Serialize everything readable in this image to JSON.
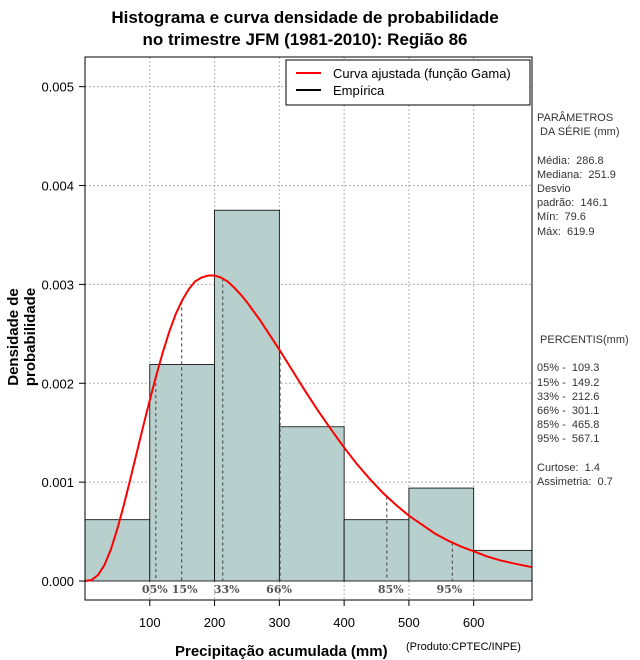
{
  "title_line1": "Histograma e curva densidade de probabilidade",
  "title_line2": "no trimestre JFM (1981-2010): Região 86",
  "colors": {
    "bar_fill": "#b7cfcd",
    "curve": "#ff0000",
    "grid": "#b0b0b0",
    "percentile_line": "#555555"
  },
  "chart_data": {
    "type": "bar",
    "xlabel": "Precipitação acumulada (mm)",
    "ylabel": "Densidade de probabilidade",
    "xlim": [
      0,
      690
    ],
    "ylim": [
      0,
      0.0053
    ],
    "x_ticks": [
      100,
      200,
      300,
      400,
      500,
      600
    ],
    "y_ticks": [
      "0.000",
      "0.001",
      "0.002",
      "0.003",
      "0.004",
      "0.005"
    ],
    "grid": true,
    "legend_position": "top-right",
    "histogram": [
      {
        "from": 0,
        "to": 100,
        "density": 0.00062
      },
      {
        "from": 100,
        "to": 200,
        "density": 0.00219
      },
      {
        "from": 200,
        "to": 300,
        "density": 0.00375
      },
      {
        "from": 300,
        "to": 400,
        "density": 0.00156
      },
      {
        "from": 400,
        "to": 500,
        "density": 0.00062
      },
      {
        "from": 500,
        "to": 600,
        "density": 0.00094
      },
      {
        "from": 600,
        "to": 700,
        "density": 0.00031
      }
    ],
    "curve": {
      "name": "Curva ajustada (função Gama)",
      "x": [
        0,
        10,
        20,
        30,
        40,
        50,
        60,
        70,
        80,
        90,
        100,
        110,
        120,
        130,
        140,
        150,
        160,
        170,
        180,
        190,
        200,
        210,
        220,
        230,
        240,
        250,
        260,
        270,
        280,
        290,
        300,
        320,
        340,
        360,
        380,
        400,
        420,
        440,
        460,
        480,
        500,
        520,
        540,
        560,
        580,
        600,
        620,
        640,
        660,
        690
      ],
      "y": [
        0.0,
        1e-05,
        6e-05,
        0.00016,
        0.00032,
        0.00053,
        0.00077,
        0.00103,
        0.0013,
        0.00157,
        0.00183,
        0.00208,
        0.00231,
        0.00252,
        0.0027,
        0.00284,
        0.00295,
        0.00303,
        0.00307,
        0.00309,
        0.00309,
        0.00307,
        0.00303,
        0.00297,
        0.0029,
        0.00282,
        0.00273,
        0.00264,
        0.00254,
        0.00244,
        0.00234,
        0.00213,
        0.00192,
        0.00172,
        0.00153,
        0.00135,
        0.00118,
        0.00103,
        0.00089,
        0.00077,
        0.00066,
        0.00057,
        0.00048,
        0.00041,
        0.00035,
        0.0003,
        0.00025,
        0.00021,
        0.00018,
        0.00014
      ]
    },
    "empirical_legend": "Empírica",
    "percentile_markers": [
      {
        "label": "05%",
        "x": 109.3
      },
      {
        "label": "15%",
        "x": 149.2
      },
      {
        "label": "33%",
        "x": 212.6
      },
      {
        "label": "66%",
        "x": 301.1
      },
      {
        "label": "85%",
        "x": 465.8
      },
      {
        "label": "95%",
        "x": 567.1
      }
    ]
  },
  "stats": {
    "header1": "PARÂMETROS",
    "header2": " DA SÉRIE (mm)",
    "media": "Média:  286.8",
    "mediana": "Mediana:  251.9",
    "desvio1": "Desvio",
    "desvio2": "padrão:  146.1",
    "min": "Mín:  79.6",
    "max": "Máx:  619.9"
  },
  "percentiles": {
    "header": " PERCENTIS(mm)",
    "p05": "05% -  109.3",
    "p15": "15% -  149.2",
    "p33": "33% -  212.6",
    "p66": "66% -  301.1",
    "p85": "85% -  465.8",
    "p95": "95% -  567.1",
    "curtose": "Curtose:  1.4",
    "assimetria": "Assimetria:  0.7"
  },
  "credit": "(Produto:CPTEC/INPE)"
}
